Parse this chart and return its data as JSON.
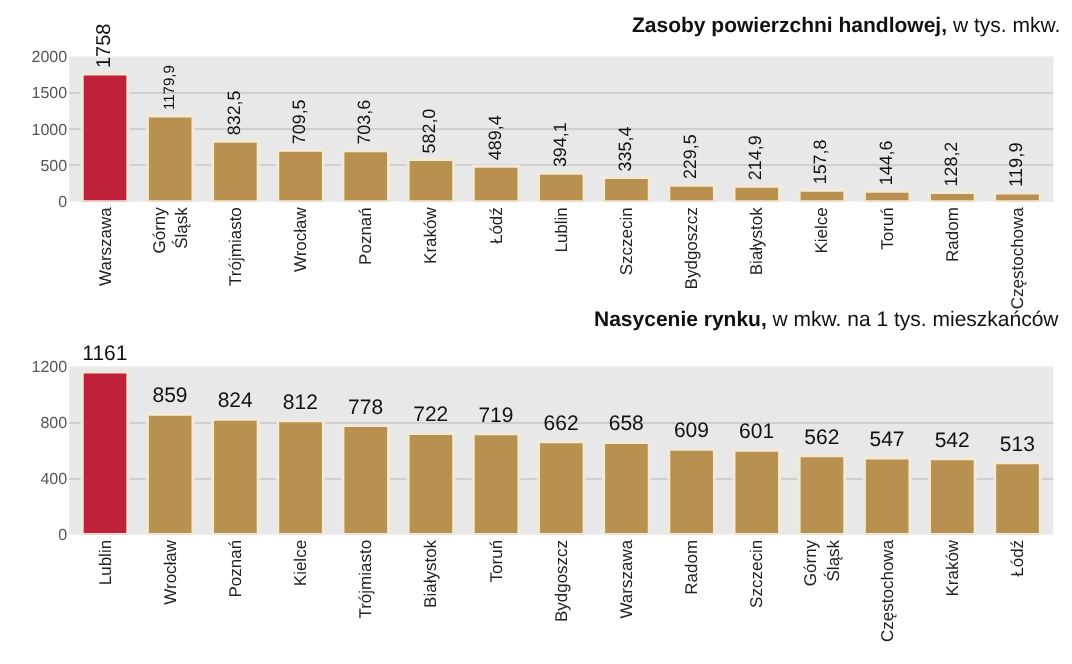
{
  "chart_data": [
    {
      "type": "bar",
      "title": "Zasoby powierzchni handlowej,",
      "subtitle": "w tys. mkw.",
      "categories": [
        "Warszawa",
        "Górny Śląsk",
        "Trójmiasto",
        "Wrocław",
        "Poznań",
        "Kraków",
        "Łódź",
        "Lublin",
        "Szczecin",
        "Bydgoszcz",
        "Białystok",
        "Kielce",
        "Toruń",
        "Radom",
        "Częstochowa"
      ],
      "values": [
        1758,
        1179.9,
        832.5,
        709.5,
        703.6,
        582.0,
        489.4,
        394.1,
        335.4,
        229.5,
        214.9,
        157.8,
        144.6,
        128.2,
        119.9
      ],
      "value_labels": [
        "1758",
        "1179,9",
        "832,5",
        "709,5",
        "703,6",
        "582,0",
        "489,4",
        "394,1",
        "335,4",
        "229,5",
        "214,9",
        "157,8",
        "144,6",
        "128,2",
        "119,9"
      ],
      "colors": [
        "#c0213a",
        "#b8904f",
        "#b8904f",
        "#b8904f",
        "#b8904f",
        "#b8904f",
        "#b8904f",
        "#b8904f",
        "#b8904f",
        "#b8904f",
        "#b8904f",
        "#b8904f",
        "#b8904f",
        "#b8904f",
        "#b8904f"
      ],
      "ylim": [
        0,
        2000
      ],
      "yticks": [
        0,
        500,
        1000,
        1500,
        2000
      ],
      "grid": "y"
    },
    {
      "type": "bar",
      "title": "Nasycenie rynku,",
      "subtitle": "w mkw. na 1 tys. mieszkańców",
      "categories": [
        "Lublin",
        "Wrocław",
        "Poznań",
        "Kielce",
        "Trójmiasto",
        "Białystok",
        "Toruń",
        "Bydgoszcz",
        "Warszawa",
        "Radom",
        "Szczecin",
        "Górny Śląsk",
        "Częstochowa",
        "Kraków",
        "Łódź"
      ],
      "values": [
        1161,
        859,
        824,
        812,
        778,
        722,
        719,
        662,
        658,
        609,
        601,
        562,
        547,
        542,
        513
      ],
      "data_labels": true,
      "colors": [
        "#c0213a",
        "#b8904f",
        "#b8904f",
        "#b8904f",
        "#b8904f",
        "#b8904f",
        "#b8904f",
        "#b8904f",
        "#b8904f",
        "#b8904f",
        "#b8904f",
        "#b8904f",
        "#b8904f",
        "#b8904f",
        "#b8904f"
      ],
      "ylim": [
        0,
        1200
      ],
      "yticks": [
        0,
        400,
        800,
        1200
      ],
      "grid": "y"
    }
  ]
}
